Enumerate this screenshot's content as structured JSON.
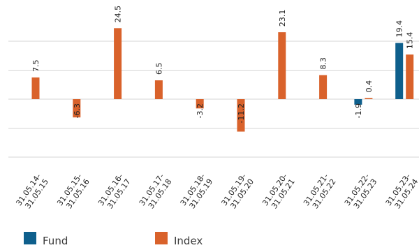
{
  "chart_data": {
    "type": "bar",
    "categories": [
      [
        "31.05.14-",
        "31.05.15"
      ],
      [
        "31.05.15-",
        "31.05.16"
      ],
      [
        "31.05.16-",
        "31.05.17"
      ],
      [
        "31.05.17-",
        "31.05.18"
      ],
      [
        "31.05.18-",
        "31.05.19"
      ],
      [
        "31.05.19-",
        "31.05.20"
      ],
      [
        "31.05.20-",
        "31.05.21"
      ],
      [
        "31.05.21-",
        "31.05.22"
      ],
      [
        "31.05.22-",
        "31.05.23"
      ],
      [
        "31.05.23-",
        "31.05.24"
      ]
    ],
    "series": [
      {
        "name": "Fund",
        "color": "#0e5f8c",
        "values": [
          null,
          null,
          null,
          null,
          null,
          null,
          null,
          null,
          -1.9,
          19.4
        ],
        "labels": [
          "",
          "",
          "",
          "",
          "",
          "",
          "",
          "",
          "-1.9",
          "19.4"
        ]
      },
      {
        "name": "Index",
        "color": "#d9622b",
        "values": [
          7.5,
          -6.3,
          24.5,
          6.5,
          -3.2,
          -11.2,
          23.1,
          8.3,
          0.4,
          15.4
        ],
        "labels": [
          "7.5",
          "-6.3",
          "24.5",
          "6.5",
          "-3.2",
          "-11.2",
          "23.1",
          "8.3",
          "0.4",
          "15.4"
        ]
      }
    ],
    "ylim": [
      -20,
      25
    ],
    "grid": true,
    "legend_position": "bottom-left"
  }
}
